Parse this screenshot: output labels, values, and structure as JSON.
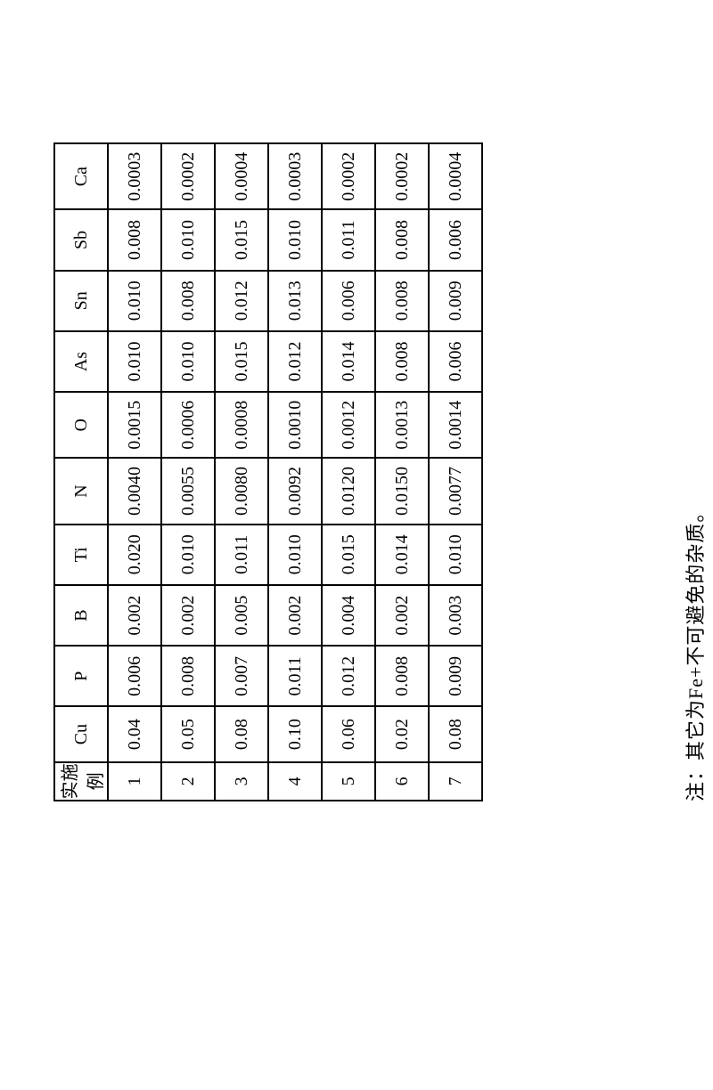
{
  "table": {
    "type": "table",
    "border_color": "#000000",
    "background_color": "#ffffff",
    "text_color": "#000000",
    "header_font_size_pt": 15,
    "cell_font_size_pt": 15,
    "columns": [
      "实施例",
      "Cu",
      "P",
      "B",
      "Ti",
      "N",
      "O",
      "As",
      "Sn",
      "Sb",
      "Ca"
    ],
    "rows": [
      [
        "1",
        "0.04",
        "0.006",
        "0.002",
        "0.020",
        "0.0040",
        "0.0015",
        "0.010",
        "0.010",
        "0.008",
        "0.0003"
      ],
      [
        "2",
        "0.05",
        "0.008",
        "0.002",
        "0.010",
        "0.0055",
        "0.0006",
        "0.010",
        "0.008",
        "0.010",
        "0.0002"
      ],
      [
        "3",
        "0.08",
        "0.007",
        "0.005",
        "0.011",
        "0.0080",
        "0.0008",
        "0.015",
        "0.012",
        "0.015",
        "0.0004"
      ],
      [
        "4",
        "0.10",
        "0.011",
        "0.002",
        "0.010",
        "0.0092",
        "0.0010",
        "0.012",
        "0.013",
        "0.010",
        "0.0003"
      ],
      [
        "5",
        "0.06",
        "0.012",
        "0.004",
        "0.015",
        "0.0120",
        "0.0012",
        "0.014",
        "0.006",
        "0.011",
        "0.0002"
      ],
      [
        "6",
        "0.02",
        "0.008",
        "0.002",
        "0.014",
        "0.0150",
        "0.0013",
        "0.008",
        "0.008",
        "0.008",
        "0.0002"
      ],
      [
        "7",
        "0.08",
        "0.009",
        "0.003",
        "0.010",
        "0.0077",
        "0.0014",
        "0.006",
        "0.009",
        "0.006",
        "0.0004"
      ]
    ]
  },
  "footnote": "注：其它为Fe+不可避免的杂质。"
}
